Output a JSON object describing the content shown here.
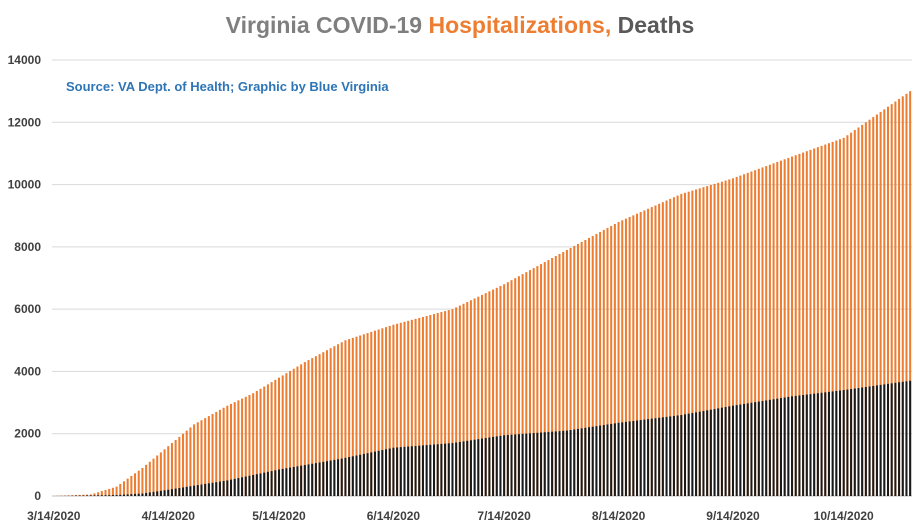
{
  "chart_data": {
    "type": "bar",
    "title_parts": [
      {
        "text": "Virginia COVID-19 ",
        "color": "#7f7f7f"
      },
      {
        "text": "Hospitalizations, ",
        "color": "#ed7d31"
      },
      {
        "text": "Deaths",
        "color": "#595959"
      }
    ],
    "annotation": "Source: VA Dept. of Health; Graphic by Blue Virginia",
    "xlabel": "",
    "ylabel": "",
    "ylim": [
      0,
      14000
    ],
    "yticks": [
      0,
      2000,
      4000,
      6000,
      8000,
      10000,
      12000,
      14000
    ],
    "grid": true,
    "legend": "none",
    "x_tick_labels": [
      "3/14/2020",
      "4/14/2020",
      "5/14/2020",
      "6/14/2020",
      "7/14/2020",
      "8/14/2020",
      "9/14/2020",
      "10/14/2020"
    ],
    "x_start": "3/14/2020",
    "x_end": "11/1/2020",
    "series": [
      {
        "color": "#ed7d31",
        "keypoints": [
          [
            "3/14/2020",
            0
          ],
          [
            "3/24/2020",
            50
          ],
          [
            "3/31/2020",
            300
          ],
          [
            "4/7/2020",
            900
          ],
          [
            "4/14/2020",
            1600
          ],
          [
            "4/21/2020",
            2300
          ],
          [
            "4/30/2020",
            2900
          ],
          [
            "5/7/2020",
            3300
          ],
          [
            "5/14/2020",
            3800
          ],
          [
            "5/21/2020",
            4300
          ],
          [
            "6/1/2020",
            5000
          ],
          [
            "6/14/2020",
            5500
          ],
          [
            "6/30/2020",
            6000
          ],
          [
            "7/14/2020",
            6800
          ],
          [
            "7/31/2020",
            7900
          ],
          [
            "8/14/2020",
            8800
          ],
          [
            "8/31/2020",
            9700
          ],
          [
            "9/14/2020",
            10200
          ],
          [
            "9/30/2020",
            10900
          ],
          [
            "10/14/2020",
            11500
          ],
          [
            "11/1/2020",
            13000
          ]
        ]
      },
      {
        "color": "#1a1a1a",
        "keypoints": [
          [
            "3/14/2020",
            0
          ],
          [
            "3/31/2020",
            30
          ],
          [
            "4/7/2020",
            80
          ],
          [
            "4/14/2020",
            200
          ],
          [
            "4/30/2020",
            500
          ],
          [
            "5/14/2020",
            850
          ],
          [
            "5/31/2020",
            1200
          ],
          [
            "6/14/2020",
            1550
          ],
          [
            "6/30/2020",
            1700
          ],
          [
            "7/14/2020",
            1950
          ],
          [
            "7/31/2020",
            2100
          ],
          [
            "8/14/2020",
            2350
          ],
          [
            "8/31/2020",
            2600
          ],
          [
            "9/14/2020",
            2900
          ],
          [
            "9/30/2020",
            3200
          ],
          [
            "10/14/2020",
            3400
          ],
          [
            "11/1/2020",
            3700
          ]
        ]
      }
    ]
  }
}
